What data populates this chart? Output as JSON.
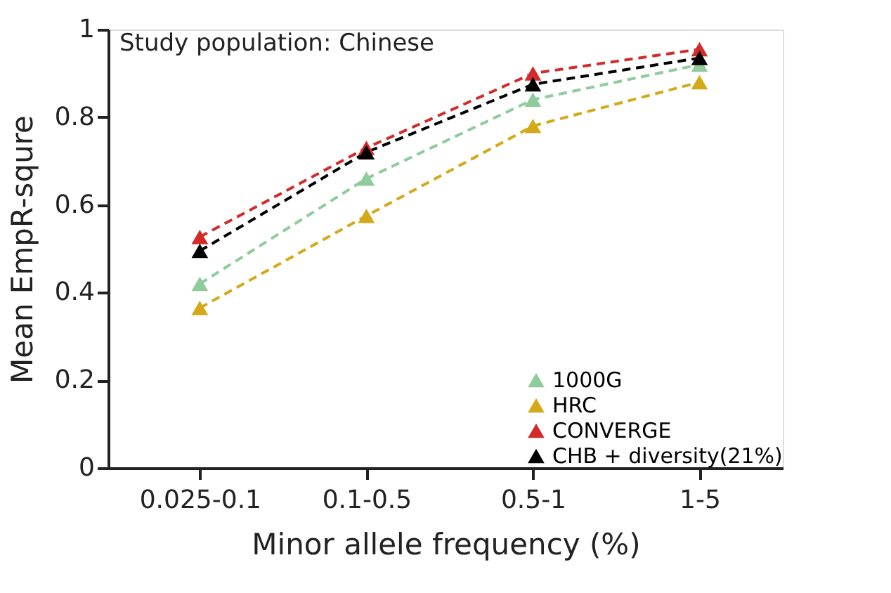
{
  "chart_data": {
    "type": "line",
    "xlabel": "Minor allele frequency (%)",
    "ylabel": "Mean EmpR-squre",
    "annotations": [
      "Study population: Chinese"
    ],
    "categories": [
      "0.025-0.1",
      "0.1-0.5",
      "0.5-1",
      "1-5"
    ],
    "series": [
      {
        "name": "1000G",
        "color": "#8fcb9b",
        "values": [
          0.42,
          0.66,
          0.84,
          0.92
        ]
      },
      {
        "name": "HRC",
        "color": "#d4a919",
        "values": [
          0.365,
          0.575,
          0.78,
          0.88
        ]
      },
      {
        "name": "CONVERGE",
        "color": "#d22b2b",
        "values": [
          0.527,
          0.73,
          0.9,
          0.955
        ]
      },
      {
        "name": "CHB + diversity(21%)",
        "color": "#000000",
        "values": [
          0.495,
          0.72,
          0.875,
          0.935
        ]
      }
    ],
    "ylim": [
      0,
      1
    ],
    "yticks": [
      0,
      0.2,
      0.4,
      0.6,
      0.8,
      1
    ],
    "marker": "triangle",
    "line_style": "dashed",
    "grid": false,
    "legend": "bottom right"
  }
}
